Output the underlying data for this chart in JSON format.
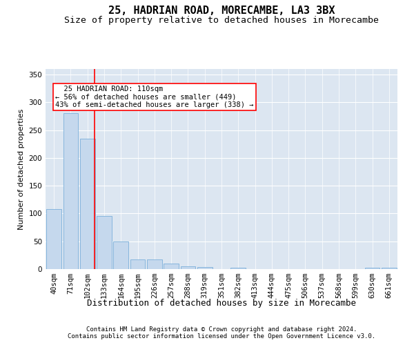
{
  "title1": "25, HADRIAN ROAD, MORECAMBE, LA3 3BX",
  "title2": "Size of property relative to detached houses in Morecambe",
  "xlabel": "Distribution of detached houses by size in Morecambe",
  "ylabel": "Number of detached properties",
  "footnote1": "Contains HM Land Registry data © Crown copyright and database right 2024.",
  "footnote2": "Contains public sector information licensed under the Open Government Licence v3.0.",
  "annotation_line1": "  25 HADRIAN ROAD: 110sqm",
  "annotation_line2": "← 56% of detached houses are smaller (449)",
  "annotation_line3": "43% of semi-detached houses are larger (338) →",
  "bar_labels": [
    "40sqm",
    "71sqm",
    "102sqm",
    "133sqm",
    "164sqm",
    "195sqm",
    "226sqm",
    "257sqm",
    "288sqm",
    "319sqm",
    "351sqm",
    "382sqm",
    "413sqm",
    "444sqm",
    "475sqm",
    "506sqm",
    "537sqm",
    "568sqm",
    "599sqm",
    "630sqm",
    "661sqm"
  ],
  "bar_values": [
    108,
    280,
    235,
    95,
    50,
    18,
    17,
    10,
    5,
    4,
    0,
    3,
    0,
    0,
    0,
    0,
    0,
    0,
    0,
    3,
    3
  ],
  "bar_color": "#c5d8ed",
  "bar_edge_color": "#7aafda",
  "ylim": [
    0,
    360
  ],
  "yticks": [
    0,
    50,
    100,
    150,
    200,
    250,
    300,
    350
  ],
  "plot_bg_color": "#dce6f1",
  "grid_color": "#ffffff",
  "title1_fontsize": 11,
  "title2_fontsize": 9.5,
  "xlabel_fontsize": 9,
  "ylabel_fontsize": 8,
  "tick_fontsize": 7.5,
  "footnote_fontsize": 6.5,
  "annotation_fontsize": 7.5
}
